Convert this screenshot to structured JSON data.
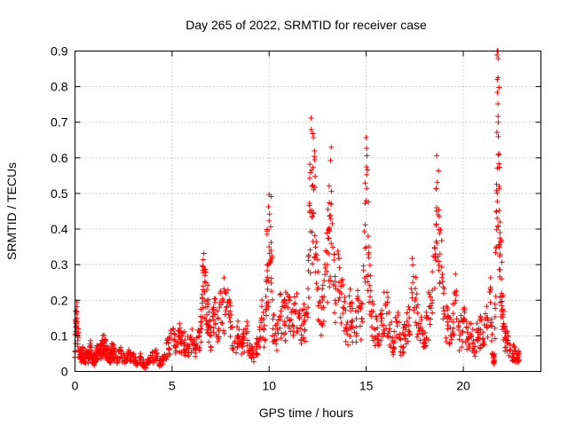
{
  "chart_data": {
    "type": "scatter",
    "title": "Day 265 of 2022, SRMTID for receiver case",
    "xlabel": "GPS time / hours",
    "ylabel": "SRMTID / TECUs",
    "xlim": [
      0,
      24
    ],
    "ylim": [
      0,
      0.9
    ],
    "xticks": [
      0,
      5,
      10,
      15,
      20
    ],
    "yticks": [
      0,
      0.1,
      0.2,
      0.3,
      0.4,
      0.5,
      0.6,
      0.7,
      0.8,
      0.9
    ],
    "xtick_labels": [
      "0",
      "5",
      "10",
      "15",
      "20"
    ],
    "ytick_labels": [
      "0",
      "0.1",
      "0.2",
      "0.3",
      "0.4",
      "0.5",
      "0.6",
      "0.7",
      "0.8",
      "0.9"
    ],
    "grid": true,
    "marker": "+",
    "color": "#ff0000",
    "series": [
      {
        "name": "SRMTID",
        "x": [
          0.0,
          0.05,
          0.1,
          0.2,
          0.3,
          0.4,
          0.5,
          0.6,
          0.7,
          0.8,
          0.9,
          1.0,
          1.1,
          1.2,
          1.3,
          1.4,
          1.5,
          1.6,
          1.7,
          1.8,
          1.9,
          2.0,
          2.2,
          2.4,
          2.6,
          2.8,
          3.0,
          3.2,
          3.4,
          3.6,
          3.8,
          4.0,
          4.2,
          4.4,
          4.6,
          4.8,
          5.0,
          5.2,
          5.4,
          5.6,
          5.8,
          6.0,
          6.2,
          6.4,
          6.5,
          6.6,
          6.7,
          6.8,
          6.9,
          7.0,
          7.2,
          7.4,
          7.6,
          7.8,
          8.0,
          8.2,
          8.4,
          8.6,
          8.8,
          9.0,
          9.2,
          9.4,
          9.6,
          9.8,
          9.9,
          10.0,
          10.1,
          10.2,
          10.4,
          10.6,
          10.8,
          11.0,
          11.2,
          11.4,
          11.6,
          11.8,
          12.0,
          12.1,
          12.2,
          12.3,
          12.4,
          12.6,
          12.8,
          13.0,
          13.1,
          13.2,
          13.4,
          13.6,
          13.8,
          14.0,
          14.2,
          14.4,
          14.6,
          14.8,
          15.0,
          15.1,
          15.2,
          15.4,
          15.6,
          15.8,
          16.0,
          16.2,
          16.4,
          16.6,
          16.8,
          17.0,
          17.2,
          17.4,
          17.6,
          17.8,
          18.0,
          18.2,
          18.4,
          18.6,
          18.7,
          18.8,
          19.0,
          19.2,
          19.4,
          19.6,
          19.8,
          20.0,
          20.2,
          20.4,
          20.6,
          20.8,
          21.0,
          21.2,
          21.4,
          21.5,
          21.6,
          21.7,
          21.75,
          21.8,
          21.85,
          21.9,
          22.0,
          22.1,
          22.2,
          22.4,
          22.6,
          22.8
        ],
        "y": [
          0.04,
          0.17,
          0.14,
          0.06,
          0.04,
          0.05,
          0.03,
          0.05,
          0.04,
          0.06,
          0.04,
          0.03,
          0.05,
          0.06,
          0.05,
          0.07,
          0.08,
          0.06,
          0.05,
          0.04,
          0.06,
          0.05,
          0.04,
          0.05,
          0.03,
          0.05,
          0.04,
          0.02,
          0.04,
          0.01,
          0.03,
          0.04,
          0.05,
          0.02,
          0.04,
          0.08,
          0.09,
          0.07,
          0.1,
          0.08,
          0.07,
          0.09,
          0.06,
          0.1,
          0.14,
          0.24,
          0.27,
          0.2,
          0.13,
          0.1,
          0.16,
          0.12,
          0.2,
          0.18,
          0.14,
          0.08,
          0.1,
          0.07,
          0.12,
          0.06,
          0.04,
          0.07,
          0.15,
          0.09,
          0.3,
          0.35,
          0.34,
          0.12,
          0.09,
          0.17,
          0.14,
          0.2,
          0.13,
          0.17,
          0.12,
          0.14,
          0.18,
          0.45,
          0.52,
          0.51,
          0.33,
          0.14,
          0.18,
          0.3,
          0.4,
          0.47,
          0.2,
          0.25,
          0.18,
          0.12,
          0.17,
          0.11,
          0.18,
          0.14,
          0.48,
          0.38,
          0.21,
          0.12,
          0.1,
          0.15,
          0.19,
          0.12,
          0.08,
          0.14,
          0.07,
          0.1,
          0.13,
          0.25,
          0.18,
          0.12,
          0.09,
          0.15,
          0.2,
          0.41,
          0.44,
          0.33,
          0.17,
          0.12,
          0.1,
          0.2,
          0.09,
          0.14,
          0.11,
          0.1,
          0.07,
          0.12,
          0.09,
          0.13,
          0.23,
          0.05,
          0.03,
          0.35,
          0.82,
          0.7,
          0.52,
          0.33,
          0.21,
          0.12,
          0.09,
          0.06,
          0.05,
          0.04
        ]
      }
    ]
  }
}
